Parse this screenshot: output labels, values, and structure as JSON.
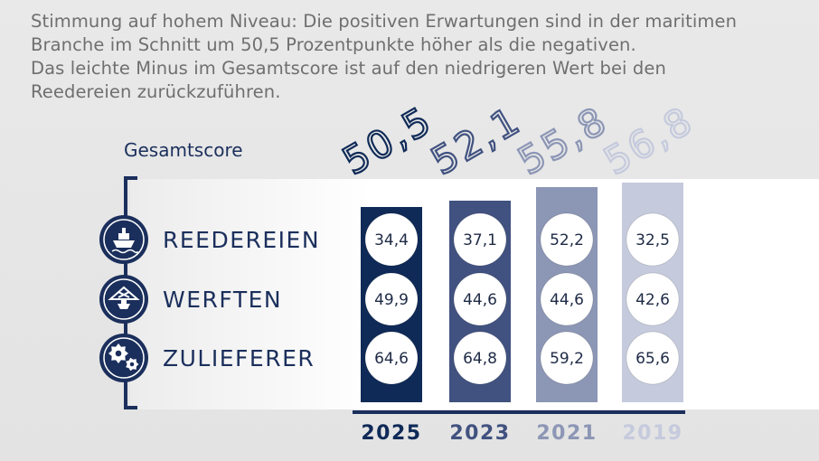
{
  "headline": {
    "lines": [
      "Stimmung auf hohem Niveau: Die positiven Erwartungen sind in der maritimen",
      "Branche im Schnitt um 50,5 Prozentpunkte höher als die negativen.",
      "Das leichte Minus im Gesamtscore ist auf den niedrigeren Wert bei den",
      "Reedereien zurückzuführen."
    ]
  },
  "chart_data": {
    "type": "table",
    "score_label": "Gesamtscore",
    "categories": [
      "2025",
      "2023",
      "2021",
      "2019"
    ],
    "totals": [
      "50,5",
      "52,1",
      "55,8",
      "56,8"
    ],
    "rows": [
      {
        "label": "REEDEREIEN",
        "icon": "ship-icon",
        "values": [
          "34,4",
          "37,1",
          "52,2",
          "32,5"
        ]
      },
      {
        "label": "WERFTEN",
        "icon": "shipyard-icon",
        "values": [
          "49,9",
          "44,6",
          "44,6",
          "42,6"
        ]
      },
      {
        "label": "ZULIEFERER",
        "icon": "gears-icon",
        "values": [
          "64,6",
          "64,8",
          "59,2",
          "65,6"
        ]
      }
    ],
    "column_colors": [
      "#0f2a57",
      "#415280",
      "#8c96b5",
      "#c5cadd"
    ],
    "column_shading": [
      1.0,
      0.83,
      0.7,
      0.5
    ]
  },
  "colors": {
    "navy": "#1b2f5c",
    "headline_gray": "#6f6f6f"
  }
}
